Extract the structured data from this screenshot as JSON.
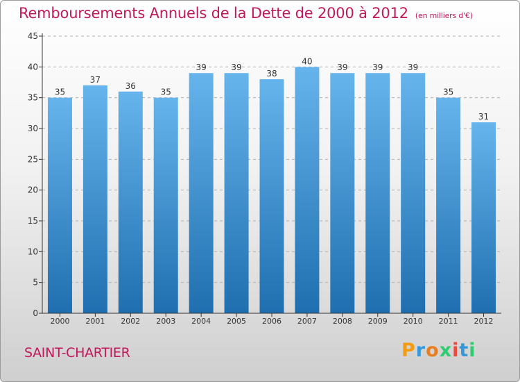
{
  "title": "Remboursements Annuels de la Dette de 2000 à 2012",
  "unit_note": "(en milliers d'€)",
  "commune": "SAINT-CHARTIER",
  "logo": {
    "text": "Proxiti",
    "letter_colors": [
      "#f39c12",
      "#3498db",
      "#e67e22",
      "#2ecc71",
      "#e74c3c",
      "#3498db",
      "#2ecc71"
    ]
  },
  "colors": {
    "title": "#c2185b",
    "bar_top": "#66b4ec",
    "bar_bottom": "#1f6fb0",
    "axis": "#333333",
    "grid": "#b0b0b0"
  },
  "chart_data": {
    "type": "bar",
    "categories": [
      "2000",
      "2001",
      "2002",
      "2003",
      "2004",
      "2005",
      "2006",
      "2007",
      "2008",
      "2009",
      "2010",
      "2011",
      "2012"
    ],
    "values": [
      35,
      37,
      36,
      35,
      39,
      39,
      38,
      40,
      39,
      39,
      39,
      35,
      31
    ],
    "yticks": [
      0,
      5,
      10,
      15,
      20,
      25,
      30,
      35,
      40,
      45
    ],
    "ylim": [
      0,
      45
    ],
    "grid": true
  }
}
